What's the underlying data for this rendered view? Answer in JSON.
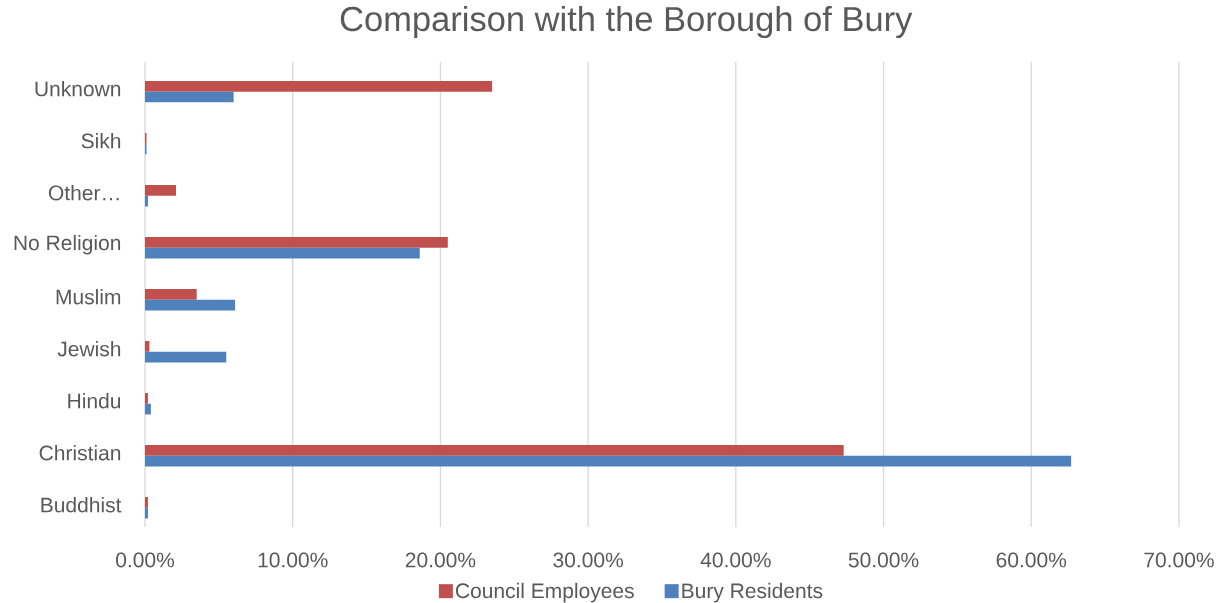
{
  "chart_data": {
    "type": "bar",
    "orientation": "horizontal",
    "title": "Comparison with the Borough of Bury",
    "categories": [
      "Unknown",
      "Sikh",
      "Other…",
      "No Religion",
      "Muslim",
      "Jewish",
      "Hindu",
      "Christian",
      "Buddhist"
    ],
    "series": [
      {
        "name": "Council Employees",
        "color": "#c0504d",
        "values": [
          23.5,
          0.1,
          2.1,
          20.5,
          3.5,
          0.3,
          0.2,
          47.3,
          0.2
        ]
      },
      {
        "name": "Bury Residents",
        "color": "#4f81bd",
        "values": [
          6.0,
          0.1,
          0.2,
          18.6,
          6.1,
          5.5,
          0.4,
          62.7,
          0.2
        ]
      }
    ],
    "xlim": [
      0,
      70
    ],
    "xticks": [
      {
        "value": 0,
        "label": "0.00%"
      },
      {
        "value": 10,
        "label": "10.00%"
      },
      {
        "value": 20,
        "label": "20.00%"
      },
      {
        "value": 30,
        "label": "30.00%"
      },
      {
        "value": 40,
        "label": "40.00%"
      },
      {
        "value": 50,
        "label": "50.00%"
      },
      {
        "value": 60,
        "label": "60.00%"
      },
      {
        "value": 70,
        "label": "70.00%"
      }
    ],
    "grid": "x",
    "legend": "bottom"
  }
}
